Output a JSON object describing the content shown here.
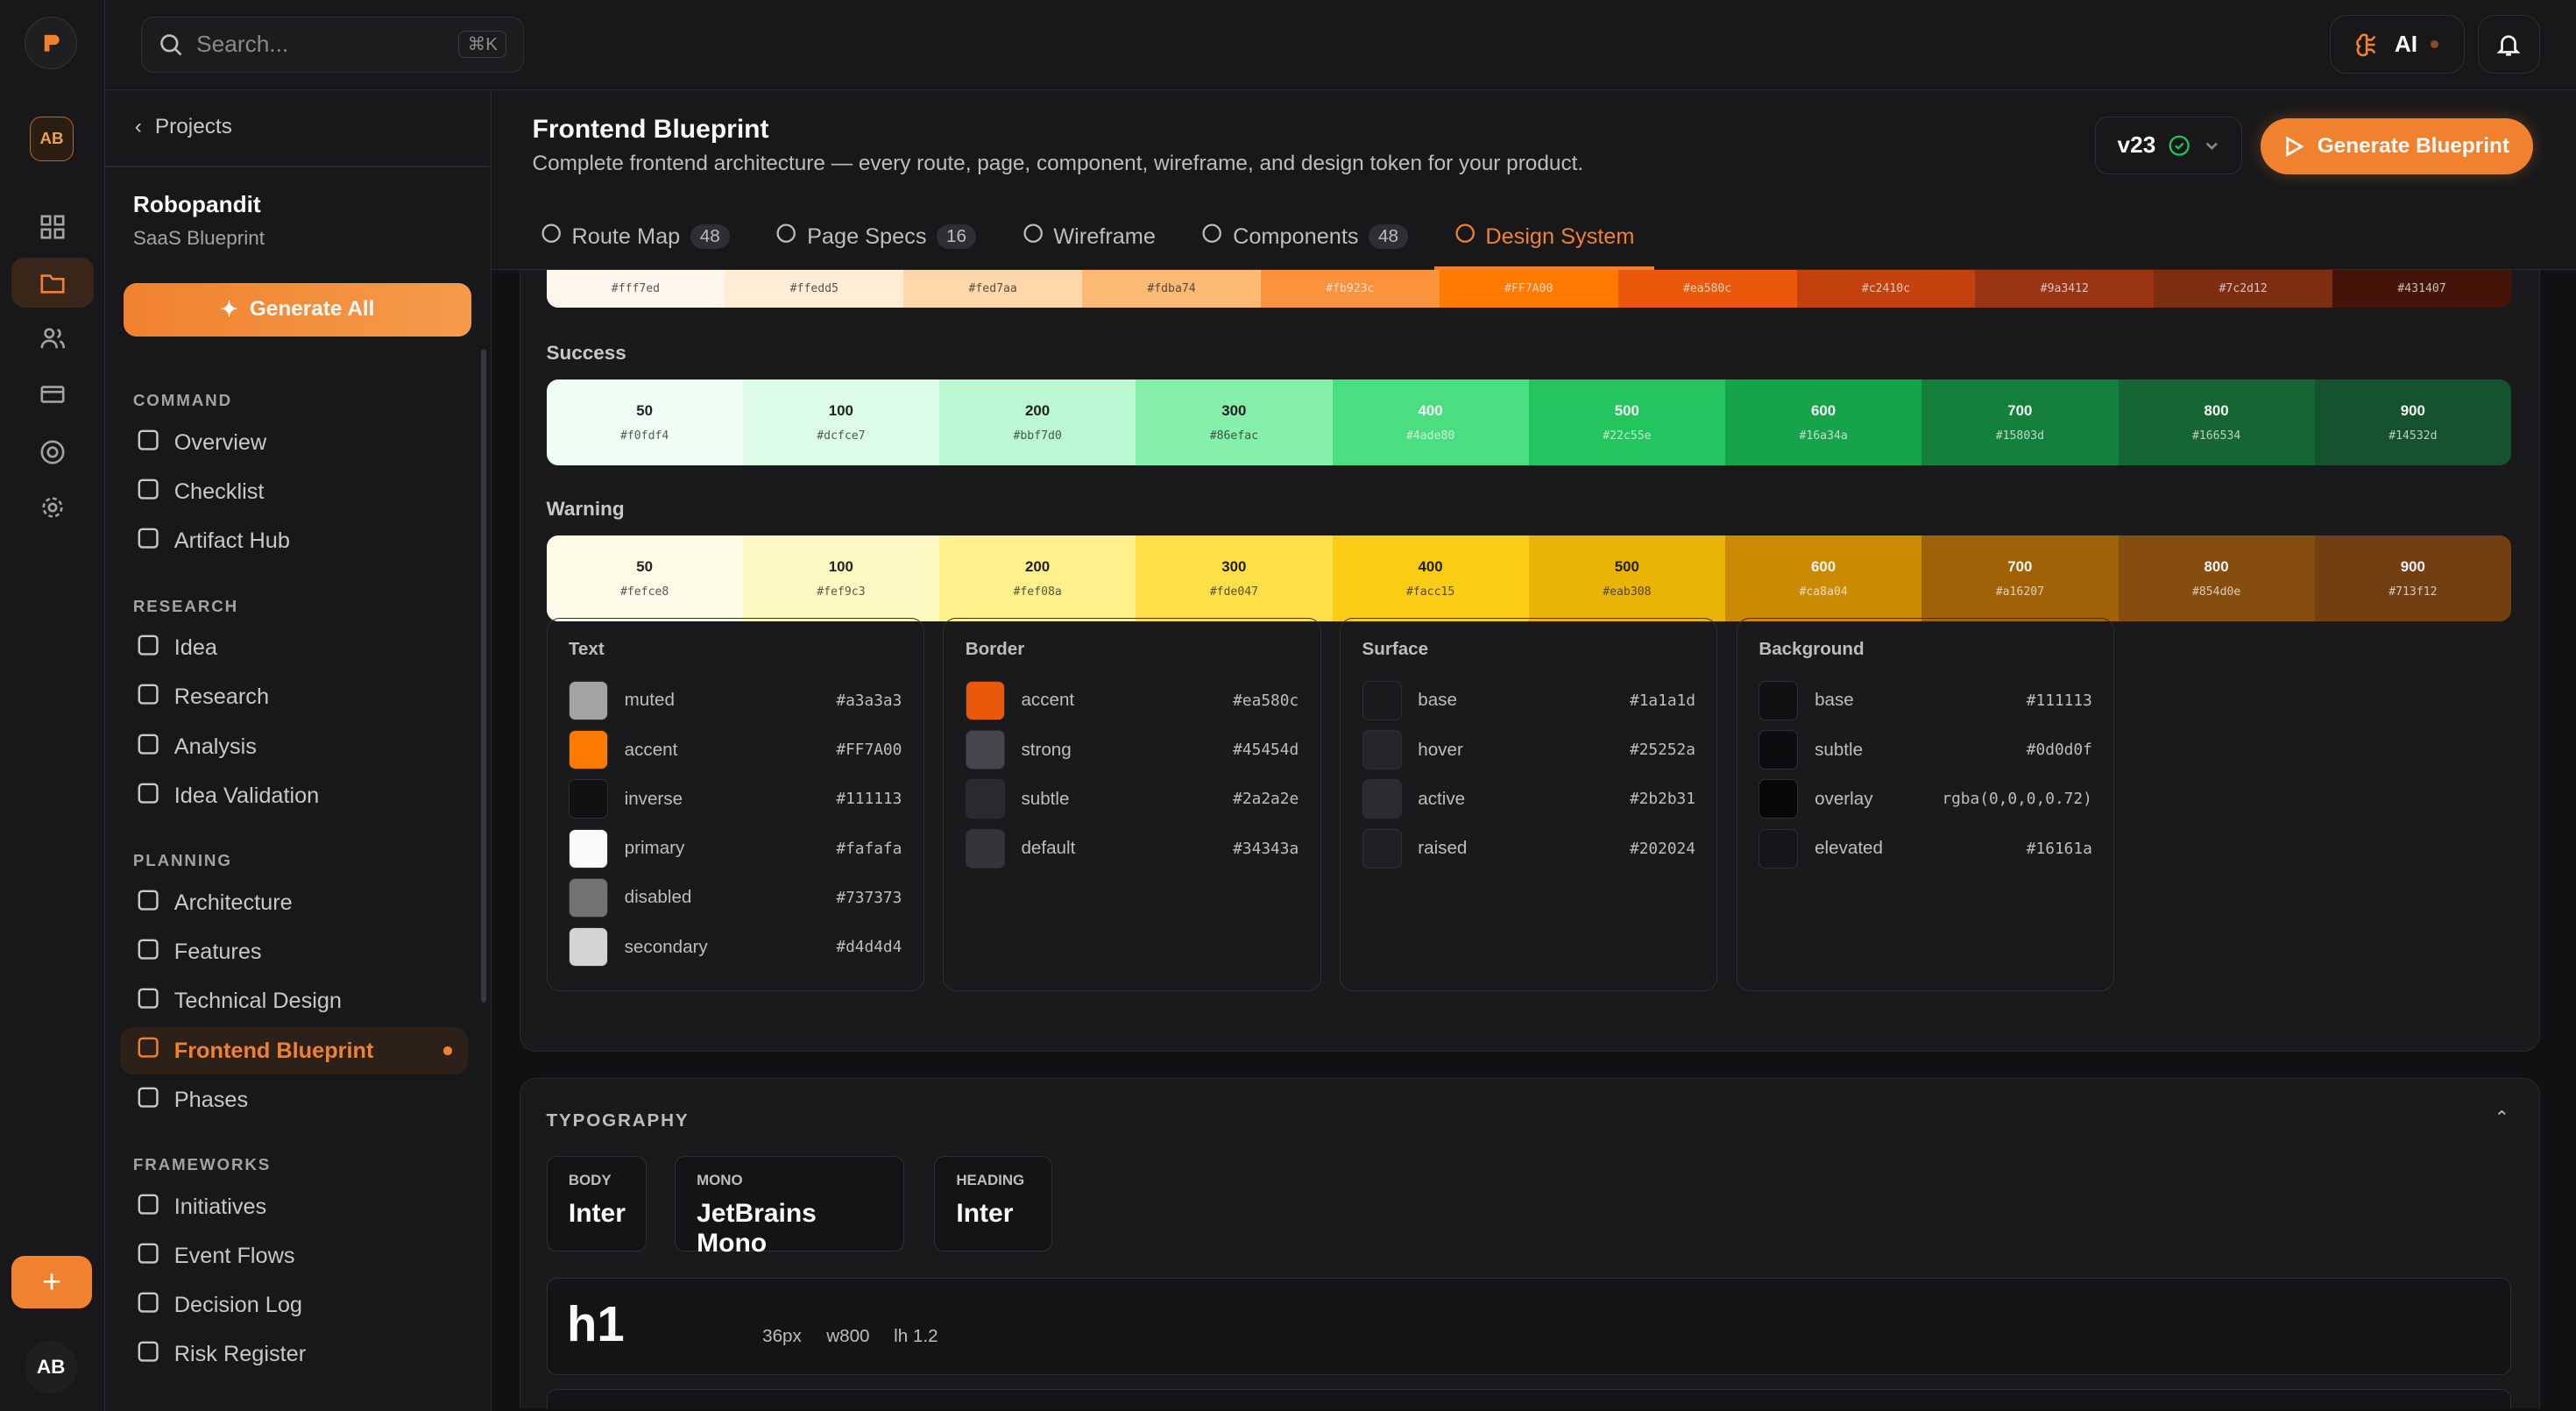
{
  "rail": {
    "avatar": "AB",
    "user": "AB",
    "plus": "+"
  },
  "topbar": {
    "search_placeholder": "Search...",
    "shortcut": "⌘K",
    "ai_label": "AI"
  },
  "sidebar": {
    "back": "Projects",
    "project": "Robopandit",
    "project_sub": "SaaS Blueprint",
    "generate_all": "Generate All",
    "sections": [
      {
        "title": "COMMAND",
        "items": [
          {
            "label": "Overview",
            "icon": "activity-icon"
          },
          {
            "label": "Checklist",
            "icon": "checkbox-icon"
          },
          {
            "label": "Artifact Hub",
            "icon": "grid-icon"
          }
        ]
      },
      {
        "title": "RESEARCH",
        "items": [
          {
            "label": "Idea",
            "icon": "lightbulb-icon"
          },
          {
            "label": "Research",
            "icon": "search-icon"
          },
          {
            "label": "Analysis",
            "icon": "bar-chart-icon"
          },
          {
            "label": "Idea Validation",
            "icon": "scale-icon"
          }
        ]
      },
      {
        "title": "PLANNING",
        "items": [
          {
            "label": "Architecture",
            "icon": "network-icon"
          },
          {
            "label": "Features",
            "icon": "list-icon"
          },
          {
            "label": "Technical Design",
            "icon": "code-icon"
          },
          {
            "label": "Frontend Blueprint",
            "icon": "layout-icon",
            "active": true
          },
          {
            "label": "Phases",
            "icon": "signpost-icon"
          }
        ]
      },
      {
        "title": "FRAMEWORKS",
        "items": [
          {
            "label": "Initiatives",
            "icon": "flag-icon"
          },
          {
            "label": "Event Flows",
            "icon": "workflow-icon"
          },
          {
            "label": "Decision Log",
            "icon": "book-icon"
          },
          {
            "label": "Risk Register",
            "icon": "shield-icon"
          }
        ]
      }
    ]
  },
  "header": {
    "title": "Frontend Blueprint",
    "subtitle": "Complete frontend architecture — every route, page, component, wireframe, and design token for your product.",
    "version": "v23",
    "generate": "Generate Blueprint"
  },
  "tabs": [
    {
      "label": "Route Map",
      "count": "48",
      "icon": "globe-icon"
    },
    {
      "label": "Page Specs",
      "count": "16",
      "icon": "file-icon"
    },
    {
      "label": "Wireframe",
      "icon": "monitor-icon"
    },
    {
      "label": "Components",
      "count": "48",
      "icon": "box-icon"
    },
    {
      "label": "Design System",
      "icon": "palette-icon",
      "active": true
    }
  ],
  "palettes": {
    "primary": {
      "colors": [
        "#fff7ed",
        "#ffedd5",
        "#fed7aa",
        "#fdba74",
        "#fb923c",
        "#FF7A00",
        "#ea580c",
        "#c2410c",
        "#9a3412",
        "#7c2d12",
        "#431407"
      ]
    },
    "success": {
      "label": "Success",
      "shades": [
        "50",
        "100",
        "200",
        "300",
        "400",
        "500",
        "600",
        "700",
        "800",
        "900"
      ],
      "colors": [
        "#f0fdf4",
        "#dcfce7",
        "#bbf7d0",
        "#86efac",
        "#4ade80",
        "#22c55e",
        "#16a34a",
        "#15803d",
        "#166534",
        "#14532d"
      ]
    },
    "warning": {
      "label": "Warning",
      "shades": [
        "50",
        "100",
        "200",
        "300",
        "400",
        "500",
        "600",
        "700",
        "800",
        "900"
      ],
      "colors": [
        "#fefce8",
        "#fef9c3",
        "#fef08a",
        "#fde047",
        "#facc15",
        "#eab308",
        "#ca8a04",
        "#a16207",
        "#854d0e",
        "#713f12"
      ]
    }
  },
  "tokens": [
    {
      "title": "Text",
      "rows": [
        [
          "muted",
          "#a3a3a3"
        ],
        [
          "accent",
          "#FF7A00"
        ],
        [
          "inverse",
          "#111113"
        ],
        [
          "primary",
          "#fafafa"
        ],
        [
          "disabled",
          "#737373"
        ],
        [
          "secondary",
          "#d4d4d4"
        ]
      ]
    },
    {
      "title": "Border",
      "rows": [
        [
          "accent",
          "#ea580c"
        ],
        [
          "strong",
          "#45454d"
        ],
        [
          "subtle",
          "#2a2a2e"
        ],
        [
          "default",
          "#34343a"
        ]
      ]
    },
    {
      "title": "Surface",
      "rows": [
        [
          "base",
          "#1a1a1d"
        ],
        [
          "hover",
          "#25252a"
        ],
        [
          "active",
          "#2b2b31"
        ],
        [
          "raised",
          "#202024"
        ]
      ]
    },
    {
      "title": "Background",
      "rows": [
        [
          "base",
          "#111113"
        ],
        [
          "subtle",
          "#0d0d0f"
        ],
        [
          "overlay",
          "rgba(0,0,0,0.72)"
        ],
        [
          "elevated",
          "#16161a"
        ]
      ]
    }
  ],
  "typography": {
    "title": "TYPOGRAPHY",
    "fonts": [
      {
        "key": "BODY",
        "value": "Inter"
      },
      {
        "key": "MONO",
        "value": "JetBrains Mono"
      },
      {
        "key": "HEADING",
        "value": "Inter"
      }
    ],
    "scale": [
      {
        "tag": "h1",
        "size": "36px",
        "weight": "w800",
        "lh": "lh 1.2"
      }
    ]
  },
  "colors": {
    "accent": "#f0822f",
    "success": "#22c55e"
  }
}
